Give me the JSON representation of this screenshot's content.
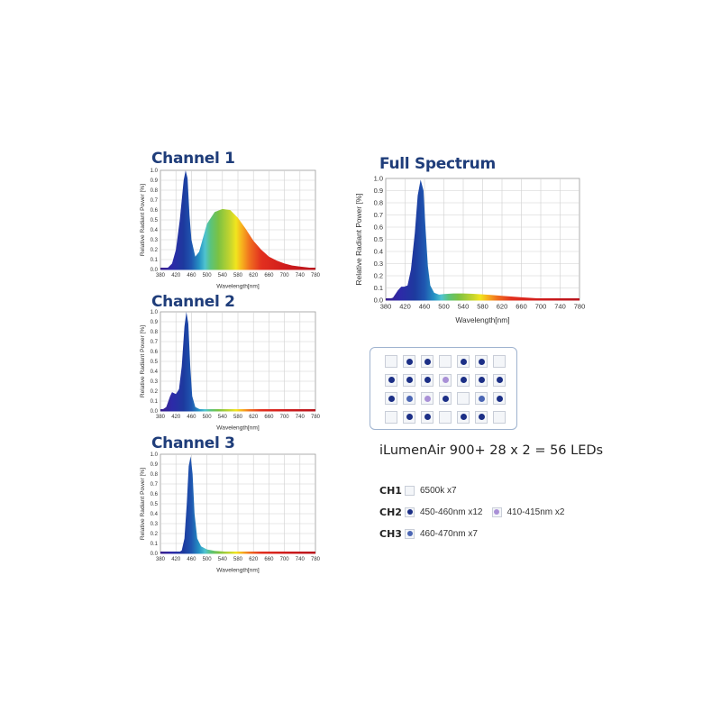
{
  "chart_data": [
    {
      "id": "ch1",
      "type": "area",
      "title": "Channel 1",
      "xlabel": "Wavelength[nm]",
      "ylabel": "Relative  Radiant  Power [%]",
      "xlim": [
        380,
        780
      ],
      "ylim": [
        0,
        1.0
      ],
      "xticks": [
        380,
        420,
        460,
        500,
        540,
        580,
        620,
        660,
        700,
        740,
        780
      ],
      "yticks": [
        0.0,
        0.1,
        0.2,
        0.3,
        0.4,
        0.5,
        0.6,
        0.7,
        0.8,
        0.9,
        1.0
      ],
      "grid": true,
      "x": [
        380,
        400,
        410,
        420,
        430,
        440,
        445,
        450,
        455,
        460,
        470,
        480,
        490,
        500,
        520,
        540,
        560,
        580,
        600,
        620,
        640,
        660,
        680,
        700,
        720,
        740,
        760,
        780
      ],
      "y": [
        0.0,
        0.02,
        0.06,
        0.2,
        0.5,
        0.9,
        1.0,
        0.92,
        0.55,
        0.3,
        0.13,
        0.18,
        0.32,
        0.46,
        0.58,
        0.61,
        0.6,
        0.52,
        0.41,
        0.29,
        0.2,
        0.13,
        0.09,
        0.06,
        0.04,
        0.03,
        0.02,
        0.01
      ]
    },
    {
      "id": "ch2",
      "type": "area",
      "title": "Channel 2",
      "xlabel": "Wavelength[nm]",
      "ylabel": "Relative  Radiant  Power [%]",
      "xlim": [
        380,
        780
      ],
      "ylim": [
        0,
        1.0
      ],
      "xticks": [
        380,
        420,
        460,
        500,
        540,
        580,
        620,
        660,
        700,
        740,
        780
      ],
      "yticks": [
        0.0,
        0.1,
        0.2,
        0.3,
        0.4,
        0.5,
        0.6,
        0.7,
        0.8,
        0.9,
        1.0
      ],
      "grid": true,
      "x": [
        380,
        395,
        405,
        410,
        415,
        420,
        428,
        435,
        442,
        447,
        452,
        457,
        462,
        470,
        480,
        500,
        530,
        780
      ],
      "y": [
        0.0,
        0.04,
        0.15,
        0.19,
        0.18,
        0.17,
        0.22,
        0.45,
        0.85,
        1.0,
        0.88,
        0.45,
        0.15,
        0.04,
        0.02,
        0.005,
        0.0,
        0.0
      ]
    },
    {
      "id": "ch3",
      "type": "area",
      "title": "Channel 3",
      "xlabel": "Wavelength[nm]",
      "ylabel": "Relative  Radiant  Power [%]",
      "xlim": [
        380,
        780
      ],
      "ylim": [
        0,
        1.0
      ],
      "xticks": [
        380,
        420,
        460,
        500,
        540,
        580,
        620,
        660,
        700,
        740,
        780
      ],
      "yticks": [
        0.0,
        0.1,
        0.2,
        0.3,
        0.4,
        0.5,
        0.6,
        0.7,
        0.8,
        0.9,
        1.0
      ],
      "grid": true,
      "x": [
        380,
        425,
        435,
        442,
        448,
        453,
        458,
        463,
        468,
        475,
        485,
        500,
        520,
        560,
        620,
        700,
        780
      ],
      "y": [
        0.0,
        0.005,
        0.03,
        0.15,
        0.5,
        0.88,
        0.98,
        0.8,
        0.4,
        0.15,
        0.07,
        0.04,
        0.025,
        0.015,
        0.01,
        0.005,
        0.0
      ]
    },
    {
      "id": "full",
      "type": "area",
      "title": "Full Spectrum",
      "xlabel": "Wavelength[nm]",
      "ylabel": "Relative  Radiant  Power [%]",
      "xlim": [
        380,
        780
      ],
      "ylim": [
        0,
        1.0
      ],
      "xticks": [
        380,
        420,
        460,
        500,
        540,
        580,
        620,
        660,
        700,
        740,
        780
      ],
      "yticks": [
        0.0,
        0.1,
        0.2,
        0.3,
        0.4,
        0.5,
        0.6,
        0.7,
        0.8,
        0.9,
        1.0
      ],
      "grid": true,
      "x": [
        380,
        395,
        405,
        412,
        418,
        425,
        432,
        440,
        446,
        452,
        458,
        462,
        467,
        472,
        480,
        490,
        500,
        520,
        540,
        560,
        580,
        600,
        620,
        660,
        700,
        740,
        780
      ],
      "y": [
        0.0,
        0.02,
        0.08,
        0.11,
        0.11,
        0.12,
        0.25,
        0.55,
        0.86,
        0.99,
        0.9,
        0.6,
        0.28,
        0.12,
        0.06,
        0.045,
        0.05,
        0.055,
        0.055,
        0.052,
        0.047,
        0.042,
        0.035,
        0.023,
        0.013,
        0.006,
        0.002
      ]
    }
  ],
  "summary": "iLumenAir 900+ 28 x 2 = 56 LEDs",
  "led_grid": {
    "rows": [
      [
        "white",
        "deep",
        "deep",
        "white",
        "deep",
        "deep",
        "white"
      ],
      [
        "deep",
        "deep",
        "deep",
        "violet",
        "deep",
        "deep",
        "deep"
      ],
      [
        "deep",
        "royal",
        "violet",
        "deep",
        "white",
        "royal",
        "deep"
      ],
      [
        "white",
        "deep",
        "deep",
        "white",
        "deep",
        "deep",
        "white"
      ]
    ]
  },
  "legend": [
    {
      "channel": "CH1",
      "items": [
        {
          "kind": "white",
          "label": "6500k x7"
        }
      ]
    },
    {
      "channel": "CH2",
      "items": [
        {
          "kind": "deep",
          "label": "450-460nm x12"
        },
        {
          "kind": "violet",
          "label": "410-415nm x2"
        }
      ]
    },
    {
      "channel": "CH3",
      "items": [
        {
          "kind": "royal",
          "label": "460-470nm x7"
        }
      ]
    }
  ],
  "colors": {
    "title": "#1f3d7a",
    "deep": "#1c2f86",
    "royal": "#4b66b4",
    "violet": "#a990d6",
    "grid": "#c8c8c8",
    "panel_border": "#9fb3cf"
  }
}
